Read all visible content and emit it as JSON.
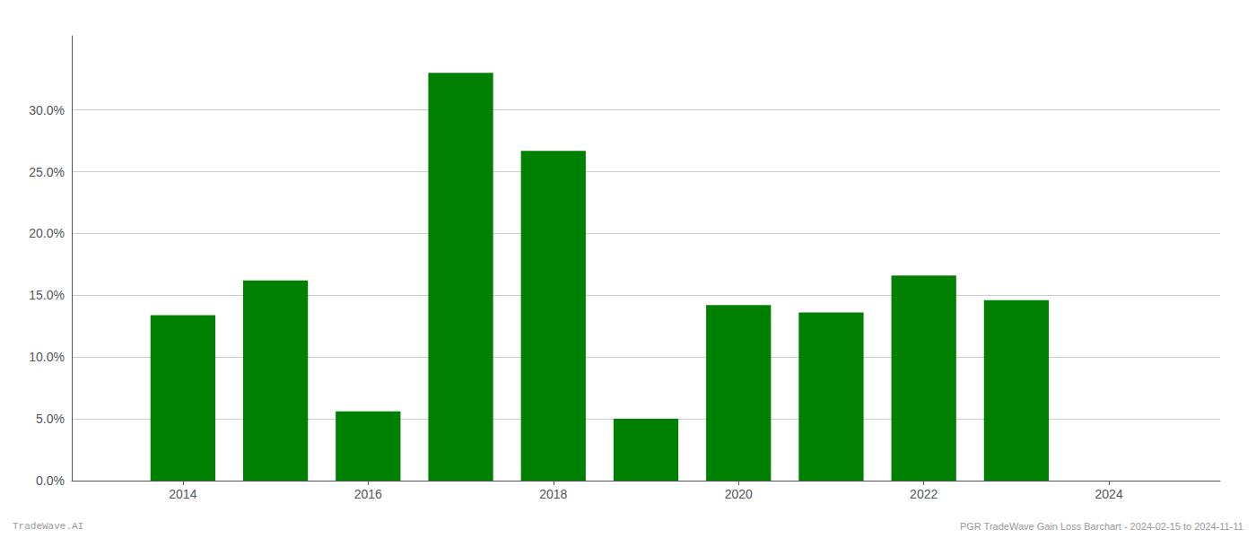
{
  "chart_data": {
    "type": "bar",
    "x": [
      2014,
      2015,
      2016,
      2017,
      2018,
      2019,
      2020,
      2021,
      2022,
      2023
    ],
    "values": [
      0.134,
      0.162,
      0.056,
      0.33,
      0.267,
      0.05,
      0.142,
      0.136,
      0.166,
      0.146
    ],
    "color": "#008000",
    "xlim": [
      2012.8,
      2025.2
    ],
    "xticks": [
      2014,
      2016,
      2018,
      2020,
      2022,
      2024
    ],
    "ylim": [
      0,
      0.36
    ],
    "yticks": [
      {
        "value": 0.0,
        "label": "0.0%"
      },
      {
        "value": 0.05,
        "label": "5.0%"
      },
      {
        "value": 0.1,
        "label": "10.0%"
      },
      {
        "value": 0.15,
        "label": "15.0%"
      },
      {
        "value": 0.2,
        "label": "20.0%"
      },
      {
        "value": 0.25,
        "label": "25.0%"
      },
      {
        "value": 0.3,
        "label": "30.0%"
      }
    ],
    "grid": true,
    "annotations": [
      "TradeWave.AI",
      "PGR TradeWave Gain Loss Barchart - 2024-02-15 to 2024-11-11"
    ]
  }
}
